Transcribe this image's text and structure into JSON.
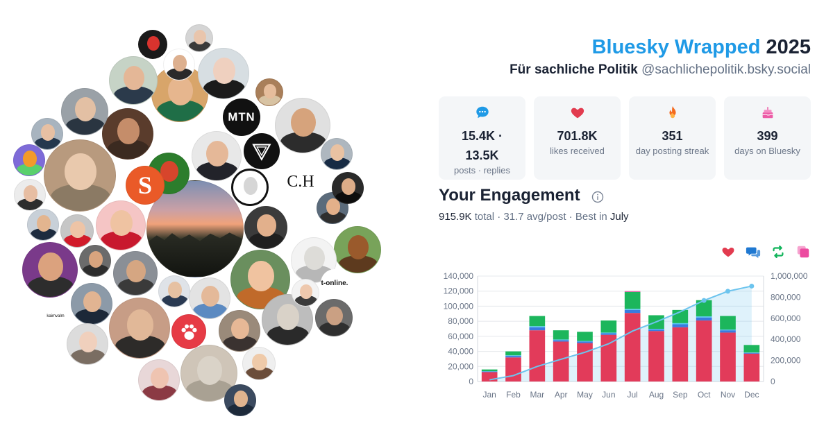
{
  "header": {
    "brand": "Bluesky Wrapped",
    "year": "2025",
    "display_name": "Für sachliche Politik",
    "handle": "@sachlichepolitik.bsky.social"
  },
  "stats": [
    {
      "icon": "speech-bubble-icon",
      "value_line1": "15.4K ·",
      "value_line2": "13.5K",
      "label": "posts · replies",
      "color": "#1f9ae6"
    },
    {
      "icon": "heart-icon",
      "value_line1": "701.8K",
      "label": "likes received",
      "color": "#e23b4f"
    },
    {
      "icon": "fire-icon",
      "value_line1": "351",
      "label": "day posting streak",
      "color": "#f46a1f"
    },
    {
      "icon": "cake-icon",
      "value_line1": "399",
      "label": "days on Bluesky",
      "color": "#ec5ba6"
    }
  ],
  "engagement": {
    "title": "Your Engagement",
    "total": "915.9K",
    "total_label": "total",
    "avg": "31.7 avg/post",
    "best_label": "Best in",
    "best_month": "July"
  },
  "legend": [
    {
      "icon": "heart-icon",
      "color": "#e23b4f"
    },
    {
      "icon": "reply-icon",
      "color": "#1f78d1"
    },
    {
      "icon": "repost-icon",
      "color": "#10b45a"
    },
    {
      "icon": "quote-icon",
      "color": "#ec4ba0"
    }
  ],
  "avatar_texts": {
    "ch": "C.H",
    "tonline": "t-online.",
    "small": "kaimvalm",
    "mtn": "MTN",
    "s": "S"
  },
  "chart_data": {
    "type": "bar",
    "stacked": true,
    "categories": [
      "Jan",
      "Feb",
      "Mar",
      "Apr",
      "May",
      "Jun",
      "Jul",
      "Aug",
      "Sep",
      "Oct",
      "Nov",
      "Dec"
    ],
    "series": [
      {
        "color": "#e23b5a",
        "values": [
          12500,
          32000,
          68000,
          53000,
          51000,
          62000,
          91000,
          67000,
          72000,
          81000,
          65000,
          37000
        ]
      },
      {
        "color": "#3a7be0",
        "values": [
          800,
          2000,
          4000,
          2000,
          2000,
          2000,
          4000,
          2000,
          4000,
          4000,
          3000,
          1000
        ]
      },
      {
        "color": "#56c8f0",
        "values": [
          400,
          800,
          1500,
          800,
          800,
          1000,
          1500,
          1000,
          1500,
          1500,
          1000,
          500
        ]
      },
      {
        "color": "#1cb65c",
        "values": [
          2300,
          5200,
          13500,
          12200,
          12200,
          16000,
          22500,
          18000,
          17500,
          21500,
          18000,
          10000
        ]
      },
      {
        "color": "#ec4ba0",
        "values": [
          0,
          0,
          0,
          0,
          0,
          0,
          1000,
          0,
          0,
          0,
          0,
          0
        ]
      }
    ],
    "cumulative": {
      "color": "#6cc4ee",
      "values": [
        16000,
        56000,
        143000,
        211000,
        277000,
        358000,
        478000,
        566000,
        661000,
        769000,
        856000,
        905000
      ]
    },
    "ylim_left": [
      0,
      140000
    ],
    "ylim_right": [
      0,
      1000000
    ],
    "left_ticks": [
      "0",
      "20,000",
      "40,000",
      "60,000",
      "80,000",
      "100,000",
      "120,000",
      "140,000"
    ],
    "right_ticks": [
      "0",
      "200,000",
      "400,000",
      "600,000",
      "800,000",
      "1,000,000"
    ],
    "grid": true
  }
}
